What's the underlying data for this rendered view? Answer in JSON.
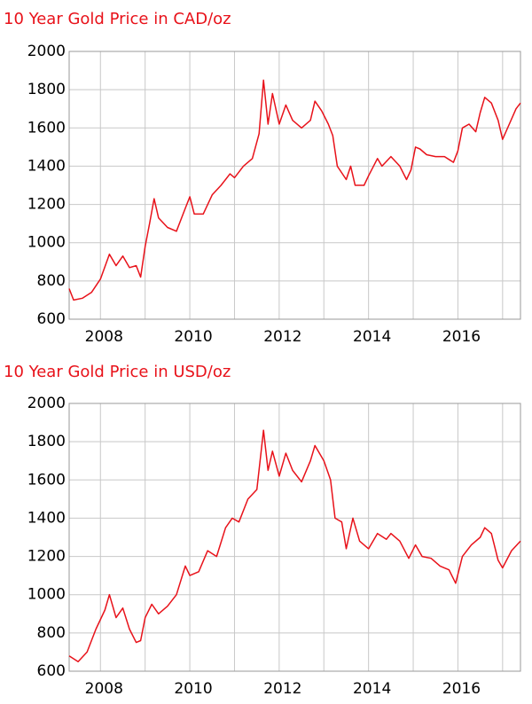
{
  "chart_data": [
    {
      "type": "line",
      "title": "10 Year Gold Price in CAD/oz",
      "color": "#e8121a",
      "x": [
        2007.3,
        2007.4,
        2007.6,
        2007.8,
        2008.0,
        2008.2,
        2008.35,
        2008.5,
        2008.65,
        2008.8,
        2008.9,
        2009.0,
        2009.1,
        2009.2,
        2009.3,
        2009.5,
        2009.7,
        2009.9,
        2010.0,
        2010.1,
        2010.3,
        2010.5,
        2010.7,
        2010.9,
        2011.0,
        2011.2,
        2011.4,
        2011.55,
        2011.65,
        2011.75,
        2011.85,
        2012.0,
        2012.15,
        2012.3,
        2012.5,
        2012.7,
        2012.8,
        2012.95,
        2013.1,
        2013.2,
        2013.3,
        2013.5,
        2013.6,
        2013.7,
        2013.9,
        2014.0,
        2014.2,
        2014.3,
        2014.5,
        2014.7,
        2014.85,
        2014.95,
        2015.05,
        2015.15,
        2015.3,
        2015.5,
        2015.7,
        2015.9,
        2016.0,
        2016.1,
        2016.25,
        2016.4,
        2016.5,
        2016.6,
        2016.75,
        2016.9,
        2017.0,
        2017.15,
        2017.3,
        2017.4
      ],
      "values": [
        760,
        700,
        710,
        740,
        810,
        940,
        880,
        930,
        870,
        880,
        820,
        980,
        1100,
        1230,
        1130,
        1080,
        1060,
        1180,
        1240,
        1150,
        1150,
        1250,
        1300,
        1360,
        1340,
        1400,
        1440,
        1570,
        1850,
        1620,
        1780,
        1620,
        1720,
        1640,
        1600,
        1640,
        1740,
        1690,
        1620,
        1560,
        1400,
        1330,
        1400,
        1300,
        1300,
        1350,
        1440,
        1400,
        1450,
        1400,
        1330,
        1380,
        1500,
        1490,
        1460,
        1450,
        1450,
        1420,
        1480,
        1600,
        1620,
        1580,
        1680,
        1760,
        1730,
        1640,
        1540,
        1620,
        1700,
        1730
      ],
      "xlim": [
        2007.3,
        2017.4
      ],
      "xticks": [
        2008,
        2010,
        2012,
        2014,
        2016
      ],
      "xgrid": [
        2008,
        2009,
        2010,
        2011,
        2012,
        2013,
        2014,
        2015,
        2016,
        2017
      ],
      "ylim": [
        600,
        2000
      ],
      "yticks": [
        600,
        800,
        1000,
        1200,
        1400,
        1600,
        1800,
        2000
      ],
      "grid": true
    },
    {
      "type": "line",
      "title": "10 Year Gold Price in USD/oz",
      "color": "#e8121a",
      "x": [
        2007.3,
        2007.5,
        2007.7,
        2007.9,
        2008.1,
        2008.2,
        2008.35,
        2008.5,
        2008.65,
        2008.8,
        2008.9,
        2009.0,
        2009.15,
        2009.3,
        2009.5,
        2009.7,
        2009.9,
        2010.0,
        2010.2,
        2010.4,
        2010.6,
        2010.8,
        2010.95,
        2011.1,
        2011.3,
        2011.5,
        2011.65,
        2011.75,
        2011.85,
        2012.0,
        2012.15,
        2012.3,
        2012.5,
        2012.7,
        2012.8,
        2013.0,
        2013.15,
        2013.25,
        2013.4,
        2013.5,
        2013.65,
        2013.8,
        2014.0,
        2014.2,
        2014.4,
        2014.5,
        2014.7,
        2014.9,
        2015.05,
        2015.2,
        2015.4,
        2015.6,
        2015.8,
        2015.95,
        2016.1,
        2016.3,
        2016.5,
        2016.6,
        2016.75,
        2016.9,
        2017.0,
        2017.2,
        2017.4
      ],
      "values": [
        680,
        650,
        700,
        820,
        920,
        1000,
        880,
        930,
        820,
        750,
        760,
        880,
        950,
        900,
        940,
        1000,
        1150,
        1100,
        1120,
        1230,
        1200,
        1350,
        1400,
        1380,
        1500,
        1550,
        1860,
        1650,
        1750,
        1620,
        1740,
        1650,
        1590,
        1700,
        1780,
        1700,
        1600,
        1400,
        1380,
        1240,
        1400,
        1280,
        1240,
        1320,
        1290,
        1320,
        1280,
        1190,
        1260,
        1200,
        1190,
        1150,
        1130,
        1060,
        1200,
        1260,
        1300,
        1350,
        1320,
        1180,
        1140,
        1230,
        1280
      ],
      "xlim": [
        2007.3,
        2017.4
      ],
      "xticks": [
        2008,
        2010,
        2012,
        2014,
        2016
      ],
      "xgrid": [
        2008,
        2009,
        2010,
        2011,
        2012,
        2013,
        2014,
        2015,
        2016,
        2017
      ],
      "ylim": [
        600,
        2000
      ],
      "yticks": [
        600,
        800,
        1000,
        1200,
        1400,
        1600,
        1800,
        2000
      ],
      "grid": true
    }
  ]
}
